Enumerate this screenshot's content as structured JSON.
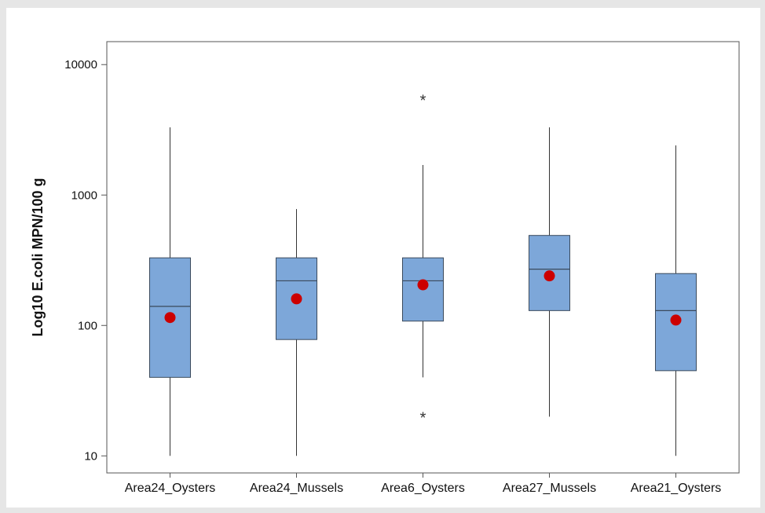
{
  "chart_data": {
    "type": "boxplot",
    "title": "",
    "xlabel": "",
    "ylabel": "Log10 E.coli MPN/100 g",
    "yscale": "log",
    "ylim": [
      7.4,
      15000
    ],
    "yticks": [
      10,
      100,
      1000,
      10000
    ],
    "ytick_labels": [
      "10",
      "100",
      "1000",
      "10000"
    ],
    "grid": false,
    "colors": {
      "box_fill": "#7da7d9",
      "box_stroke": "#3b4a5c",
      "mean_marker": "#cc0000",
      "whisker": "#333333"
    },
    "categories": [
      "Area24_Oysters",
      "Area24_Mussels",
      "Area6_Oysters",
      "Area27_Mussels",
      "Area21_Oysters"
    ],
    "boxes": [
      {
        "whisker_low": 10,
        "q1": 40,
        "median": 140,
        "q3": 330,
        "whisker_high": 3300,
        "mean": 115,
        "outliers": []
      },
      {
        "whisker_low": 10,
        "q1": 78,
        "median": 220,
        "q3": 330,
        "whisker_high": 780,
        "mean": 160,
        "outliers": []
      },
      {
        "whisker_low": 40,
        "q1": 108,
        "median": 220,
        "q3": 330,
        "whisker_high": 1700,
        "mean": 205,
        "outliers": [
          20,
          5400
        ]
      },
      {
        "whisker_low": 20,
        "q1": 130,
        "median": 270,
        "q3": 490,
        "whisker_high": 3300,
        "mean": 240,
        "outliers": []
      },
      {
        "whisker_low": 10,
        "q1": 45,
        "median": 130,
        "q3": 250,
        "whisker_high": 2400,
        "mean": 110,
        "outliers": []
      }
    ]
  }
}
